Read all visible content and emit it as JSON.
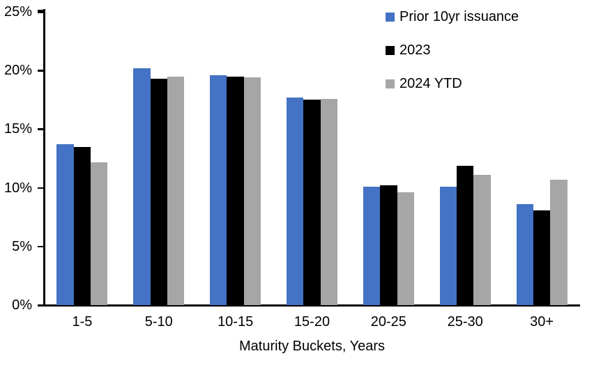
{
  "chart_data": {
    "type": "bar",
    "title": "",
    "xlabel": "Maturity Buckets, Years",
    "ylabel": "",
    "ylim": [
      0,
      25
    ],
    "y_tick_step": 5,
    "y_tick_labels": [
      "0%",
      "5%",
      "10%",
      "15%",
      "20%",
      "25%"
    ],
    "grid": false,
    "legend_position": "top-right",
    "categories": [
      "1-5",
      "5-10",
      "10-15",
      "15-20",
      "20-25",
      "25-30",
      "30+"
    ],
    "series": [
      {
        "name": "Prior 10yr issuance",
        "color": "#4472C4",
        "values": [
          13.7,
          20.2,
          19.6,
          17.7,
          10.1,
          10.1,
          8.6
        ]
      },
      {
        "name": "2023",
        "color": "#000000",
        "values": [
          13.5,
          19.3,
          19.5,
          17.5,
          10.2,
          11.9,
          8.1
        ]
      },
      {
        "name": "2024 YTD",
        "color": "#A6A6A6",
        "values": [
          12.2,
          19.5,
          19.4,
          17.6,
          9.6,
          11.1,
          10.7
        ]
      }
    ]
  }
}
